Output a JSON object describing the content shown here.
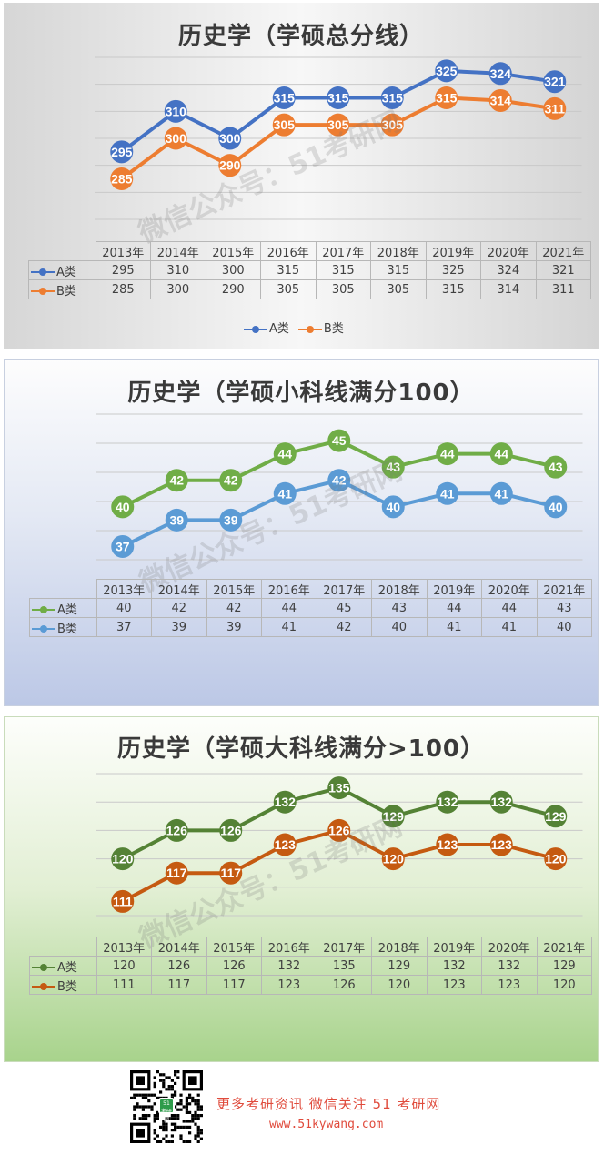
{
  "watermark": "微信公众号：51考研网",
  "chart_data": [
    {
      "type": "line",
      "title": "历史学（学硕总分线）",
      "categories": [
        "2013年",
        "2014年",
        "2015年",
        "2016年",
        "2017年",
        "2018年",
        "2019年",
        "2020年",
        "2021年"
      ],
      "series": [
        {
          "name": "A类",
          "values": [
            295,
            310,
            300,
            315,
            315,
            315,
            325,
            324,
            321
          ],
          "color": "#4472c4"
        },
        {
          "name": "B类",
          "values": [
            285,
            300,
            290,
            305,
            305,
            305,
            315,
            314,
            311
          ],
          "color": "#ed7d31"
        }
      ],
      "ylim": [
        270,
        330
      ],
      "grid": true,
      "legend": "bottom",
      "data_table": true
    },
    {
      "type": "line",
      "title": "历史学（学硕小科线满分100）",
      "categories": [
        "2013年",
        "2014年",
        "2015年",
        "2016年",
        "2017年",
        "2018年",
        "2019年",
        "2020年",
        "2021年"
      ],
      "series": [
        {
          "name": "A类",
          "values": [
            40,
            42,
            42,
            44,
            45,
            43,
            44,
            44,
            43
          ],
          "color": "#70ad47"
        },
        {
          "name": "B类",
          "values": [
            37,
            39,
            39,
            41,
            42,
            40,
            41,
            41,
            40
          ],
          "color": "#5b9bd5"
        }
      ],
      "ylim": [
        36,
        47
      ],
      "grid": true,
      "legend": "none",
      "data_table": true
    },
    {
      "type": "line",
      "title": "历史学（学硕大科线满分>100）",
      "categories": [
        "2013年",
        "2014年",
        "2015年",
        "2016年",
        "2017年",
        "2018年",
        "2019年",
        "2020年",
        "2021年"
      ],
      "series": [
        {
          "name": "A类",
          "values": [
            120,
            126,
            126,
            132,
            135,
            129,
            132,
            132,
            129
          ],
          "color": "#548235"
        },
        {
          "name": "B类",
          "values": [
            111,
            117,
            117,
            123,
            126,
            120,
            123,
            123,
            120
          ],
          "color": "#c55a11"
        }
      ],
      "ylim": [
        108,
        138
      ],
      "grid": true,
      "legend": "none",
      "data_table": true
    }
  ],
  "footer": {
    "line1": "更多考研资讯 微信关注 51 考研网",
    "line2": "www.51kywang.com",
    "qr_center_text": "51\n考研网"
  }
}
